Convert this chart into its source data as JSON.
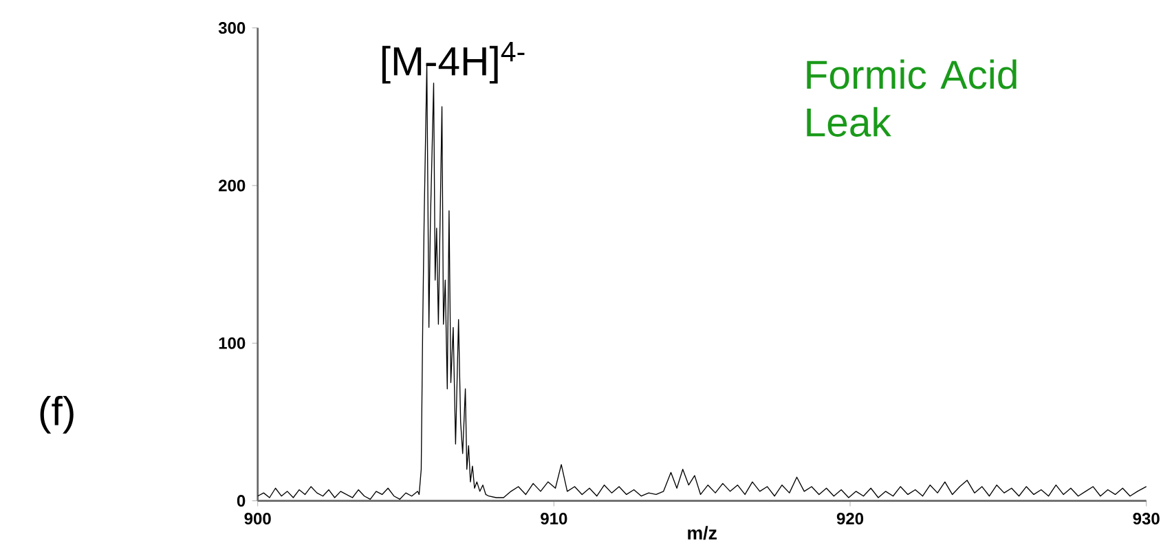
{
  "chart_data": {
    "type": "line",
    "xlabel": "m/z",
    "color": "#000000",
    "annotations": [
      "[M-4H]$^{4-}$",
      "Formic Acid Leak",
      "(f)"
    ],
    "xlim": [
      900,
      930
    ],
    "xticks": [
      900,
      910,
      920,
      930
    ],
    "ylim": [
      0,
      300
    ],
    "yticks": [
      0,
      100,
      200,
      300
    ],
    "x": [
      900.0,
      900.2,
      900.4,
      900.6,
      900.8,
      901.0,
      901.2,
      901.4,
      901.6,
      901.8,
      902.0,
      902.2,
      902.4,
      902.6,
      902.8,
      903.0,
      903.2,
      903.4,
      903.6,
      903.8,
      904.0,
      904.2,
      904.4,
      904.6,
      904.8,
      905.0,
      905.2,
      905.4,
      905.45,
      905.52,
      905.57,
      905.62,
      905.71,
      905.78,
      905.83,
      905.94,
      905.99,
      906.04,
      906.1,
      906.22,
      906.27,
      906.33,
      906.4,
      906.46,
      906.52,
      906.6,
      906.68,
      906.78,
      906.85,
      906.92,
      907.01,
      907.06,
      907.12,
      907.18,
      907.25,
      907.32,
      907.4,
      907.5,
      907.6,
      907.7,
      907.8,
      908.05,
      908.3,
      908.55,
      908.8,
      909.05,
      909.3,
      909.55,
      909.8,
      910.05,
      910.25,
      910.45,
      910.7,
      910.95,
      911.2,
      911.45,
      911.7,
      911.95,
      912.2,
      912.45,
      912.7,
      912.95,
      913.2,
      913.45,
      913.7,
      913.95,
      914.15,
      914.35,
      914.55,
      914.75,
      914.95,
      915.2,
      915.45,
      915.7,
      915.95,
      916.2,
      916.45,
      916.7,
      916.95,
      917.2,
      917.45,
      917.7,
      917.95,
      918.2,
      918.45,
      918.7,
      918.95,
      919.2,
      919.45,
      919.7,
      919.95,
      920.2,
      920.45,
      920.7,
      920.95,
      921.2,
      921.45,
      921.7,
      921.95,
      922.2,
      922.45,
      922.7,
      922.95,
      923.2,
      923.45,
      923.7,
      923.95,
      924.2,
      924.45,
      924.7,
      924.95,
      925.2,
      925.45,
      925.7,
      925.95,
      926.2,
      926.45,
      926.7,
      926.95,
      927.2,
      927.45,
      927.7,
      927.95,
      928.2,
      928.45,
      928.7,
      928.95,
      929.2,
      929.45,
      929.7,
      930.0
    ],
    "values": [
      3,
      5,
      2,
      8,
      3,
      6,
      2,
      7,
      4,
      9,
      5,
      3,
      7,
      2,
      6,
      4,
      2,
      7,
      3,
      1,
      6,
      4,
      8,
      3,
      1,
      5,
      3,
      6,
      4,
      20,
      110,
      180,
      277,
      110,
      177,
      265,
      140,
      173,
      112,
      250,
      112,
      140,
      71,
      184,
      75,
      110,
      36,
      115,
      50,
      30,
      71,
      20,
      35,
      12,
      22,
      8,
      12,
      6,
      10,
      4,
      3,
      2,
      2,
      6,
      9,
      4,
      11,
      6,
      12,
      8,
      23,
      6,
      9,
      4,
      8,
      3,
      10,
      5,
      9,
      4,
      7,
      3,
      5,
      4,
      6,
      18,
      8,
      20,
      10,
      16,
      4,
      10,
      5,
      11,
      6,
      10,
      4,
      12,
      6,
      9,
      3,
      10,
      5,
      15,
      6,
      9,
      4,
      8,
      3,
      7,
      2,
      6,
      3,
      8,
      2,
      6,
      3,
      9,
      4,
      7,
      3,
      10,
      5,
      12,
      4,
      9,
      13,
      5,
      9,
      3,
      10,
      5,
      8,
      3,
      9,
      4,
      7,
      3,
      10,
      4,
      8,
      3,
      6,
      9,
      3,
      7,
      4,
      8,
      3,
      6,
      9
    ]
  }
}
